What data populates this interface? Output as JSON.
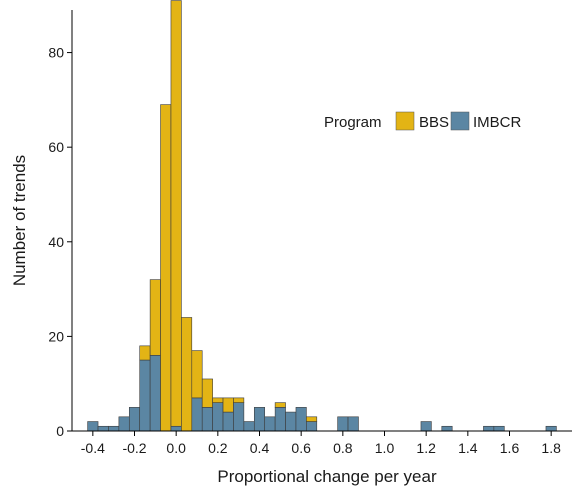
{
  "chart_data": {
    "type": "bar",
    "subtype": "stacked-histogram",
    "xlabel": "Proportional change per year",
    "ylabel": "Number of trends",
    "xlim": [
      -0.5,
      1.9
    ],
    "ylim": [
      0,
      89
    ],
    "x_ticks": [
      -0.4,
      -0.2,
      0.0,
      0.2,
      0.4,
      0.6,
      0.8,
      1.0,
      1.2,
      1.4,
      1.6,
      1.8
    ],
    "x_tick_labels": [
      "-0.4",
      "-0.2",
      "0.0",
      "0.2",
      "0.4",
      "0.6",
      "0.8",
      "1.0",
      "1.2",
      "1.4",
      "1.6",
      "1.8"
    ],
    "y_ticks": [
      0,
      20,
      40,
      60,
      80
    ],
    "y_tick_labels": [
      "0",
      "20",
      "40",
      "60",
      "80"
    ],
    "bin_width": 0.05,
    "bin_starts": [
      -0.425,
      -0.375,
      -0.325,
      -0.275,
      -0.225,
      -0.175,
      -0.125,
      -0.075,
      -0.025,
      0.025,
      0.075,
      0.125,
      0.175,
      0.225,
      0.275,
      0.325,
      0.375,
      0.425,
      0.475,
      0.525,
      0.575,
      0.625,
      0.675,
      0.725,
      0.775,
      0.825,
      0.875,
      0.925,
      0.975,
      1.025,
      1.075,
      1.125,
      1.175,
      1.225,
      1.275,
      1.325,
      1.375,
      1.425,
      1.475,
      1.525,
      1.575,
      1.625,
      1.675,
      1.725,
      1.775
    ],
    "series": [
      {
        "name": "IMBCR",
        "color": "#5b86a3",
        "values": [
          2,
          1,
          1,
          3,
          5,
          15,
          16,
          0,
          1,
          0,
          7,
          5,
          6,
          4,
          6,
          2,
          5,
          3,
          5,
          4,
          5,
          2,
          0,
          0,
          3,
          3,
          0,
          0,
          0,
          0,
          0,
          0,
          2,
          0,
          1,
          0,
          0,
          0,
          1,
          1,
          0,
          0,
          0,
          0,
          1
        ]
      },
      {
        "name": "BBS",
        "color": "#e3b415",
        "values": [
          0,
          0,
          0,
          0,
          0,
          3,
          16,
          69,
          90,
          24,
          10,
          6,
          1,
          3,
          1,
          0,
          0,
          0,
          1,
          0,
          0,
          1,
          0,
          0,
          0,
          0,
          0,
          0,
          0,
          0,
          0,
          0,
          0,
          0,
          0,
          0,
          0,
          0,
          0,
          0,
          0,
          0,
          0,
          0,
          0
        ]
      }
    ],
    "legend": {
      "title": "Program",
      "position": "top-right"
    },
    "grid": false
  }
}
